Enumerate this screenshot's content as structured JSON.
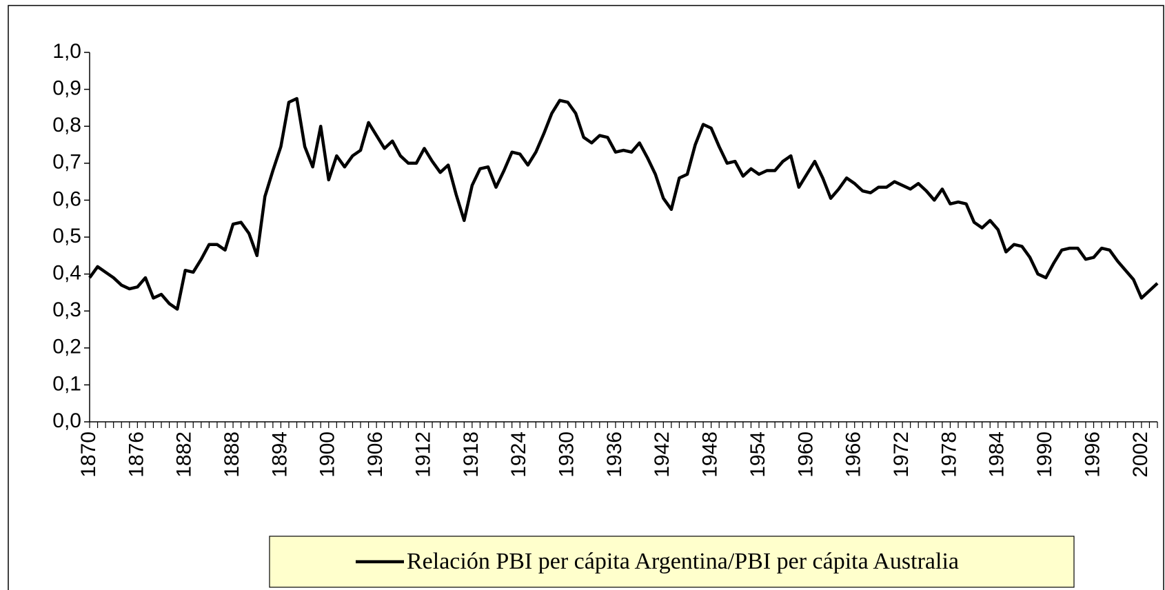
{
  "chart_data": {
    "type": "line",
    "categories": [
      "1870",
      null,
      null,
      null,
      null,
      null,
      "1876",
      null,
      null,
      null,
      null,
      null,
      "1882",
      null,
      null,
      null,
      null,
      null,
      "1888",
      null,
      null,
      null,
      null,
      null,
      "1894",
      null,
      null,
      null,
      null,
      null,
      "1900",
      null,
      null,
      null,
      null,
      null,
      "1906",
      null,
      null,
      null,
      null,
      null,
      "1912",
      null,
      null,
      null,
      null,
      null,
      "1918",
      null,
      null,
      null,
      null,
      null,
      "1924",
      null,
      null,
      null,
      null,
      null,
      "1930",
      null,
      null,
      null,
      null,
      null,
      "1936",
      null,
      null,
      null,
      null,
      null,
      "1942",
      null,
      null,
      null,
      null,
      null,
      "1948",
      null,
      null,
      null,
      null,
      null,
      "1954",
      null,
      null,
      null,
      null,
      null,
      "1960",
      null,
      null,
      null,
      null,
      null,
      "1966",
      null,
      null,
      null,
      null,
      null,
      "1972",
      null,
      null,
      null,
      null,
      null,
      "1978",
      null,
      null,
      null,
      null,
      null,
      "1984",
      null,
      null,
      null,
      null,
      null,
      "1990",
      null,
      null,
      null,
      null,
      null,
      "1996",
      null,
      null,
      null,
      null,
      null,
      "2002",
      null,
      null
    ],
    "series": [
      {
        "name": "Relación PBI per cápita Argentina/PBI per cápita Australia",
        "color": "#000000",
        "values": [
          0.39,
          0.42,
          0.405,
          0.39,
          0.37,
          0.36,
          0.365,
          0.39,
          0.335,
          0.345,
          0.32,
          0.305,
          0.41,
          0.405,
          0.44,
          0.48,
          0.48,
          0.465,
          0.535,
          0.54,
          0.51,
          0.45,
          0.61,
          0.68,
          0.745,
          0.865,
          0.875,
          0.745,
          0.69,
          0.8,
          0.655,
          0.72,
          0.69,
          0.72,
          0.735,
          0.81,
          0.775,
          0.74,
          0.76,
          0.72,
          0.7,
          0.7,
          0.74,
          0.705,
          0.675,
          0.695,
          0.615,
          0.545,
          0.64,
          0.685,
          0.69,
          0.635,
          0.68,
          0.73,
          0.725,
          0.695,
          0.73,
          0.78,
          0.835,
          0.87,
          0.865,
          0.835,
          0.77,
          0.755,
          0.775,
          0.77,
          0.73,
          0.735,
          0.73,
          0.755,
          0.715,
          0.67,
          0.605,
          0.575,
          0.66,
          0.67,
          0.75,
          0.805,
          0.795,
          0.745,
          0.7,
          0.705,
          0.665,
          0.685,
          0.67,
          0.68,
          0.68,
          0.705,
          0.72,
          0.635,
          0.67,
          0.705,
          0.66,
          0.605,
          0.63,
          0.66,
          0.645,
          0.625,
          0.62,
          0.635,
          0.635,
          0.65,
          0.64,
          0.63,
          0.645,
          0.625,
          0.6,
          0.63,
          0.59,
          0.595,
          0.59,
          0.54,
          0.525,
          0.545,
          0.52,
          0.46,
          0.48,
          0.475,
          0.445,
          0.4,
          0.39,
          0.43,
          0.465,
          0.47,
          0.47,
          0.44,
          0.445,
          0.47,
          0.465,
          0.435,
          0.41,
          0.385,
          0.335,
          0.355,
          0.375
        ]
      }
    ],
    "ylim": [
      0,
      1
    ],
    "yticks": [
      {
        "value": 0,
        "label": "0,0"
      },
      {
        "value": 0.1,
        "label": "0,1"
      },
      {
        "value": 0.2,
        "label": "0,2"
      },
      {
        "value": 0.3,
        "label": "0,3"
      },
      {
        "value": 0.4,
        "label": "0,4"
      },
      {
        "value": 0.5,
        "label": "0,5"
      },
      {
        "value": 0.6,
        "label": "0,6"
      },
      {
        "value": 0.7,
        "label": "0,7"
      },
      {
        "value": 0.8,
        "label": "0,8"
      },
      {
        "value": 0.9,
        "label": "0,9"
      },
      {
        "value": 1,
        "label": "1,0"
      }
    ],
    "legend": "bottom"
  }
}
